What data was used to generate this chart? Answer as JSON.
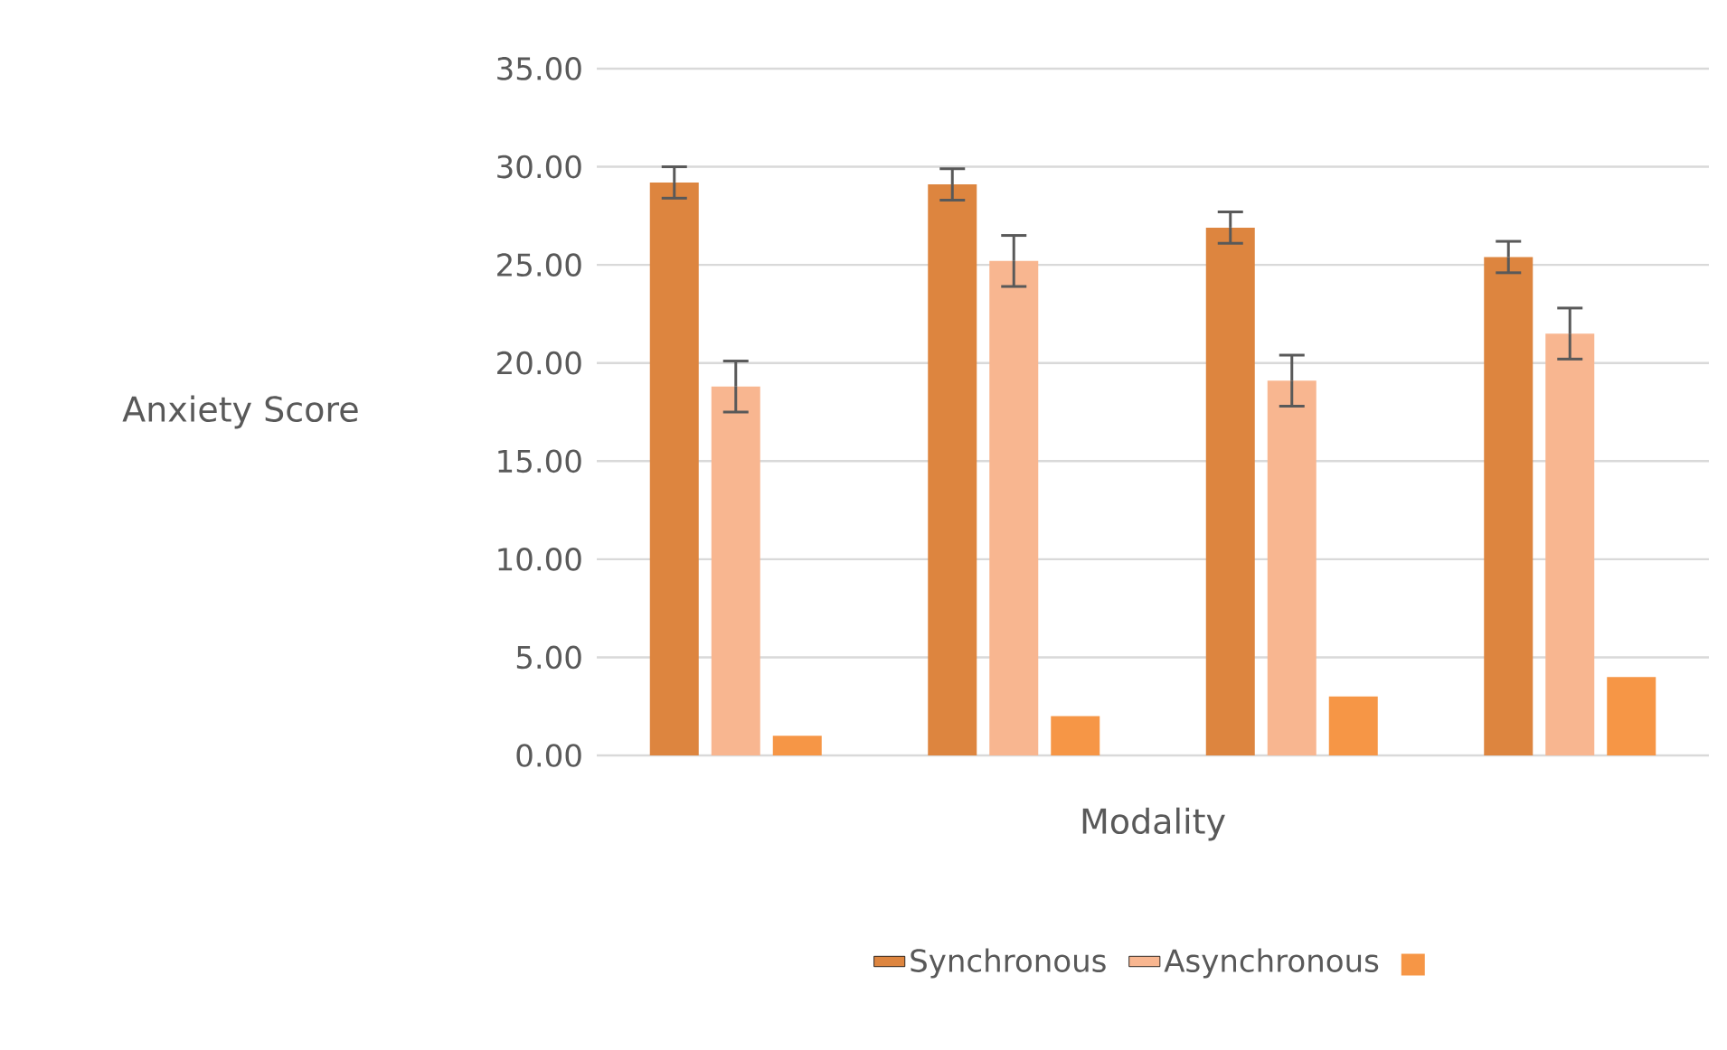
{
  "chart_data": {
    "type": "bar",
    "xlabel": "Modality",
    "ylabel": "Anxiety Score",
    "categories": [
      null,
      null,
      null,
      null
    ],
    "series": [
      {
        "name": "Synchronous",
        "color": "#dd853f",
        "values": [
          29.2,
          29.1,
          26.9,
          25.4
        ],
        "errors": [
          0.8,
          0.8,
          0.8,
          0.8
        ]
      },
      {
        "name": "Asynchronous",
        "color": "#f8b690",
        "values": [
          18.8,
          25.2,
          19.1,
          21.5
        ],
        "errors": [
          1.3,
          1.3,
          1.3,
          1.3
        ]
      },
      {
        "color": "#f69646",
        "values": [
          1,
          2,
          3,
          4
        ]
      }
    ],
    "ylim": [
      0,
      35
    ],
    "yticks": [
      {
        "value": 0,
        "label": "0.00"
      },
      {
        "value": 5,
        "label": "5.00"
      },
      {
        "value": 10,
        "label": "10.00"
      },
      {
        "value": 15,
        "label": "15.00"
      },
      {
        "value": 20,
        "label": "20.00"
      },
      {
        "value": 25,
        "label": "25.00"
      },
      {
        "value": 30,
        "label": "30.00"
      },
      {
        "value": 35,
        "label": "35.00"
      }
    ],
    "grid": "y",
    "legend": "bottom"
  }
}
